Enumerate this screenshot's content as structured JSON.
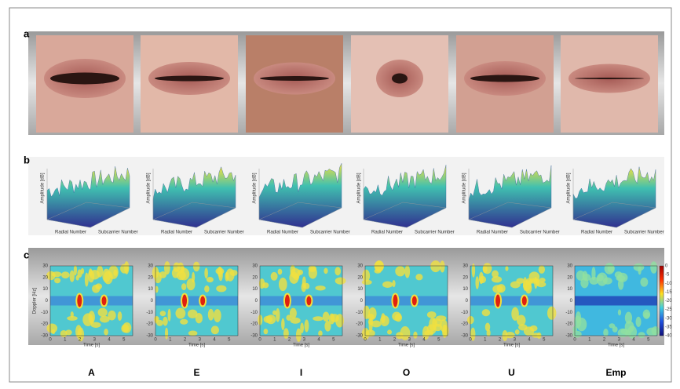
{
  "panels": {
    "a": {
      "label": "a"
    },
    "b": {
      "label": "b",
      "x_label": "Radial Number",
      "y_label": "Subcarrier Number",
      "z_label": "Amplitude [dB]"
    },
    "c": {
      "label": "c",
      "x_label": "Time [s]",
      "y_label": "Doppler [Hz]",
      "yticks": [
        30,
        20,
        10,
        0,
        -10,
        -20,
        -30
      ],
      "xticks": [
        0,
        1,
        2,
        3,
        4,
        5
      ],
      "colorbar_ticks": [
        0,
        -5,
        -10,
        -15,
        -20,
        -25,
        -30,
        -35,
        -40
      ]
    }
  },
  "columns": [
    "A",
    "E",
    "I",
    "O",
    "U",
    "Emp"
  ]
}
